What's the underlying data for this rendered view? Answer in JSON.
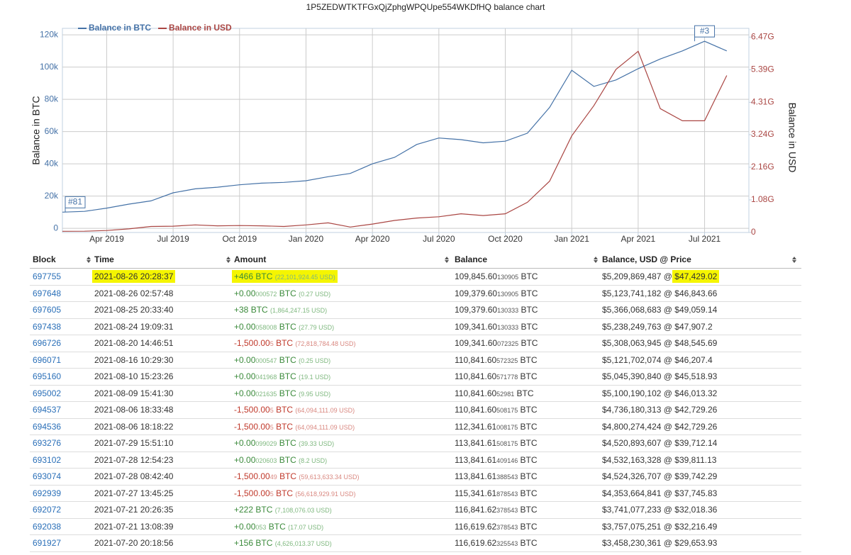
{
  "title": "1P5ZEDWTKTFGxQjZphgWPQUpe554WKDfHQ balance chart",
  "chart_data": {
    "type": "line",
    "legend": "top-left",
    "grid": true,
    "y_label": "Balance in BTC",
    "y2_label": "Balance in USD",
    "x": [
      "2019-02",
      "2019-03",
      "2019-04",
      "2019-05",
      "2019-06",
      "2019-07",
      "2019-08",
      "2019-09",
      "2019-10",
      "2019-11",
      "2019-12",
      "2020-01",
      "2020-02",
      "2020-03",
      "2020-04",
      "2020-05",
      "2020-06",
      "2020-07",
      "2020-08",
      "2020-09",
      "2020-10",
      "2020-11",
      "2020-12",
      "2021-01",
      "2021-02",
      "2021-03",
      "2021-04",
      "2021-05",
      "2021-06",
      "2021-07",
      "2021-08"
    ],
    "xlim": [
      "2019-02",
      "2021-09"
    ],
    "xticks": [
      {
        "value": "2019-04",
        "label": "Apr 2019"
      },
      {
        "value": "2019-07",
        "label": "Jul 2019"
      },
      {
        "value": "2019-10",
        "label": "Oct 2019"
      },
      {
        "value": "2020-01",
        "label": "Jan 2020"
      },
      {
        "value": "2020-04",
        "label": "Apr 2020"
      },
      {
        "value": "2020-07",
        "label": "Jul 2020"
      },
      {
        "value": "2020-10",
        "label": "Oct 2020"
      },
      {
        "value": "2021-01",
        "label": "Jan 2021"
      },
      {
        "value": "2021-04",
        "label": "Apr 2021"
      },
      {
        "value": "2021-07",
        "label": "Jul 2021"
      }
    ],
    "ylim": [
      -2600,
      124000
    ],
    "yticks": [
      0,
      {
        "value": 20000,
        "label": "20k"
      },
      {
        "value": 40000,
        "label": "40k"
      },
      {
        "value": 60000,
        "label": "60k"
      },
      {
        "value": 80000,
        "label": "80k"
      },
      {
        "value": 100000,
        "label": "100k"
      },
      {
        "value": 120000,
        "label": "120k"
      }
    ],
    "y2lim": [
      0,
      6760000000
    ],
    "y2ticks": [
      0,
      {
        "value": 1080000000,
        "label": "1.08G"
      },
      {
        "value": 2160000000,
        "label": "2.16G"
      },
      {
        "value": 3240000000,
        "label": "3.24G"
      },
      {
        "value": 4310000000,
        "label": "4.31G"
      },
      {
        "value": 5390000000,
        "label": "5.39G"
      },
      {
        "value": 6470000000,
        "label": "6.47G"
      }
    ],
    "series": [
      {
        "name": "Balance in BTC",
        "color": "#4572a7",
        "values": [
          10000,
          10500,
          12500,
          15000,
          17000,
          22000,
          24500,
          25500,
          27000,
          28000,
          28500,
          29500,
          32000,
          34000,
          40000,
          44000,
          52000,
          56000,
          55000,
          53000,
          54000,
          59000,
          75000,
          98000,
          88000,
          92000,
          99000,
          105000,
          110000,
          116000,
          110000
        ]
      },
      {
        "name": "Balance in USD",
        "color": "#aa4643",
        "axis": "y2",
        "values": [
          40000000,
          42000000,
          65000000,
          120000000,
          200000000,
          210000000,
          250000000,
          220000000,
          230000000,
          220000000,
          200000000,
          250000000,
          320000000,
          180000000,
          280000000,
          400000000,
          480000000,
          520000000,
          620000000,
          560000000,
          620000000,
          1000000000,
          1700000000,
          3200000000,
          4200000000,
          5400000000,
          6000000000,
          4100000000,
          3700000000,
          3700000000,
          5200000000
        ]
      }
    ],
    "annotations": [
      {
        "text": "#81",
        "x": "2019-02"
      },
      {
        "text": "#3",
        "x": "2021-07"
      }
    ]
  },
  "table": {
    "headers": [
      "Block",
      "Time",
      "Amount",
      "Balance",
      "Balance, USD @ Price"
    ],
    "rows": [
      {
        "block": "697755",
        "time": "2021-08-26 20:28:37",
        "amount": [
          "+466 BTC"
        ],
        "amount_usd": "(22,101,924.45 USD)",
        "balance": [
          "109,845.60",
          "130905",
          " BTC"
        ],
        "balance_usd": [
          "$5,209,869,487 @ ",
          "$47,429.02"
        ],
        "highlight": true
      },
      {
        "block": "697648",
        "time": "2021-08-26 02:57:48",
        "amount": [
          "+0.00",
          "000572",
          " BTC"
        ],
        "amount_usd": "(0.27 USD)",
        "balance": [
          "109,379.60",
          "130905",
          " BTC"
        ],
        "balance_usd": [
          "$5,123,741,182 @ ",
          "$46,843.66"
        ]
      },
      {
        "block": "697605",
        "time": "2021-08-25 20:33:40",
        "amount": [
          "+38 BTC"
        ],
        "amount_usd": "(1,864,247.15 USD)",
        "balance": [
          "109,379.60",
          "130333",
          " BTC"
        ],
        "balance_usd": [
          "$5,366,068,683 @ ",
          "$49,059.14"
        ]
      },
      {
        "block": "697438",
        "time": "2021-08-24 19:09:31",
        "amount": [
          "+0.00",
          "058008",
          " BTC"
        ],
        "amount_usd": "(27.79 USD)",
        "balance": [
          "109,341.60",
          "130333",
          " BTC"
        ],
        "balance_usd": [
          "$5,238,249,763 @ ",
          "$47,907.2"
        ]
      },
      {
        "block": "696726",
        "time": "2021-08-20 14:46:51",
        "amount": [
          "-1,500.00",
          "5",
          " BTC"
        ],
        "amount_usd": "(72,818,784.48 USD)",
        "balance": [
          "109,341.60",
          "072325",
          " BTC"
        ],
        "balance_usd": [
          "$5,308,063,945 @ ",
          "$48,545.69"
        ]
      },
      {
        "block": "696071",
        "time": "2021-08-16 10:29:30",
        "amount": [
          "+0.00",
          "000547",
          " BTC"
        ],
        "amount_usd": "(0.25 USD)",
        "balance": [
          "110,841.60",
          "572325",
          " BTC"
        ],
        "balance_usd": [
          "$5,121,702,074 @ ",
          "$46,207.4"
        ]
      },
      {
        "block": "695160",
        "time": "2021-08-10 15:23:26",
        "amount": [
          "+0.00",
          "041968",
          " BTC"
        ],
        "amount_usd": "(19.1 USD)",
        "balance": [
          "110,841.60",
          "571778",
          " BTC"
        ],
        "balance_usd": [
          "$5,045,390,840 @ ",
          "$45,518.93"
        ]
      },
      {
        "block": "695002",
        "time": "2021-08-09 15:41:30",
        "amount": [
          "+0.00",
          "021635",
          " BTC"
        ],
        "amount_usd": "(9.95 USD)",
        "balance": [
          "110,841.60",
          "52981",
          " BTC"
        ],
        "balance_usd": [
          "$5,100,190,102 @ ",
          "$46,013.32"
        ]
      },
      {
        "block": "694537",
        "time": "2021-08-06 18:33:48",
        "amount": [
          "-1,500.00",
          "5",
          " BTC"
        ],
        "amount_usd": "(64,094,111.09 USD)",
        "balance": [
          "110,841.60",
          "508175",
          " BTC"
        ],
        "balance_usd": [
          "$4,736,180,313 @ ",
          "$42,729.26"
        ]
      },
      {
        "block": "694536",
        "time": "2021-08-06 18:18:22",
        "amount": [
          "-1,500.00",
          "5",
          " BTC"
        ],
        "amount_usd": "(64,094,111.09 USD)",
        "balance": [
          "112,341.61",
          "008175",
          " BTC"
        ],
        "balance_usd": [
          "$4,800,274,424 @ ",
          "$42,729.26"
        ]
      },
      {
        "block": "693276",
        "time": "2021-07-29 15:51:10",
        "amount": [
          "+0.00",
          "099029",
          " BTC"
        ],
        "amount_usd": "(39.33 USD)",
        "balance": [
          "113,841.61",
          "508175",
          " BTC"
        ],
        "balance_usd": [
          "$4,520,893,607 @ ",
          "$39,712.14"
        ]
      },
      {
        "block": "693102",
        "time": "2021-07-28 12:54:23",
        "amount": [
          "+0.00",
          "020603",
          " BTC"
        ],
        "amount_usd": "(8.2 USD)",
        "balance": [
          "113,841.61",
          "409146",
          " BTC"
        ],
        "balance_usd": [
          "$4,532,163,328 @ ",
          "$39,811.13"
        ]
      },
      {
        "block": "693074",
        "time": "2021-07-28 08:42:40",
        "amount": [
          "-1,500.00",
          "49",
          " BTC"
        ],
        "amount_usd": "(59,613,633.34 USD)",
        "balance": [
          "113,841.61",
          "388543",
          " BTC"
        ],
        "balance_usd": [
          "$4,524,326,707 @ ",
          "$39,742.29"
        ]
      },
      {
        "block": "692939",
        "time": "2021-07-27 13:45:25",
        "amount": [
          "-1,500.00",
          "5",
          " BTC"
        ],
        "amount_usd": "(56,618,929.91 USD)",
        "balance": [
          "115,341.61",
          "878543",
          " BTC"
        ],
        "balance_usd": [
          "$4,353,664,841 @ ",
          "$37,745.83"
        ]
      },
      {
        "block": "692072",
        "time": "2021-07-21 20:26:35",
        "amount": [
          "+222 BTC"
        ],
        "amount_usd": "(7,108,076.03 USD)",
        "balance": [
          "116,841.62",
          "378543",
          " BTC"
        ],
        "balance_usd": [
          "$3,741,077,233 @ ",
          "$32,018.36"
        ]
      },
      {
        "block": "692038",
        "time": "2021-07-21 13:08:39",
        "amount": [
          "+0.00",
          "053",
          " BTC"
        ],
        "amount_usd": "(17.07 USD)",
        "balance": [
          "116,619.62",
          "378543",
          " BTC"
        ],
        "balance_usd": [
          "$3,757,075,251 @ ",
          "$32,216.49"
        ]
      },
      {
        "block": "691927",
        "time": "2021-07-20 20:18:56",
        "amount": [
          "+156 BTC"
        ],
        "amount_usd": "(4,626,013.37 USD)",
        "balance": [
          "116,619.62",
          "325543",
          " BTC"
        ],
        "balance_usd": [
          "$3,458,230,361 @ ",
          "$29,653.93"
        ]
      }
    ]
  }
}
